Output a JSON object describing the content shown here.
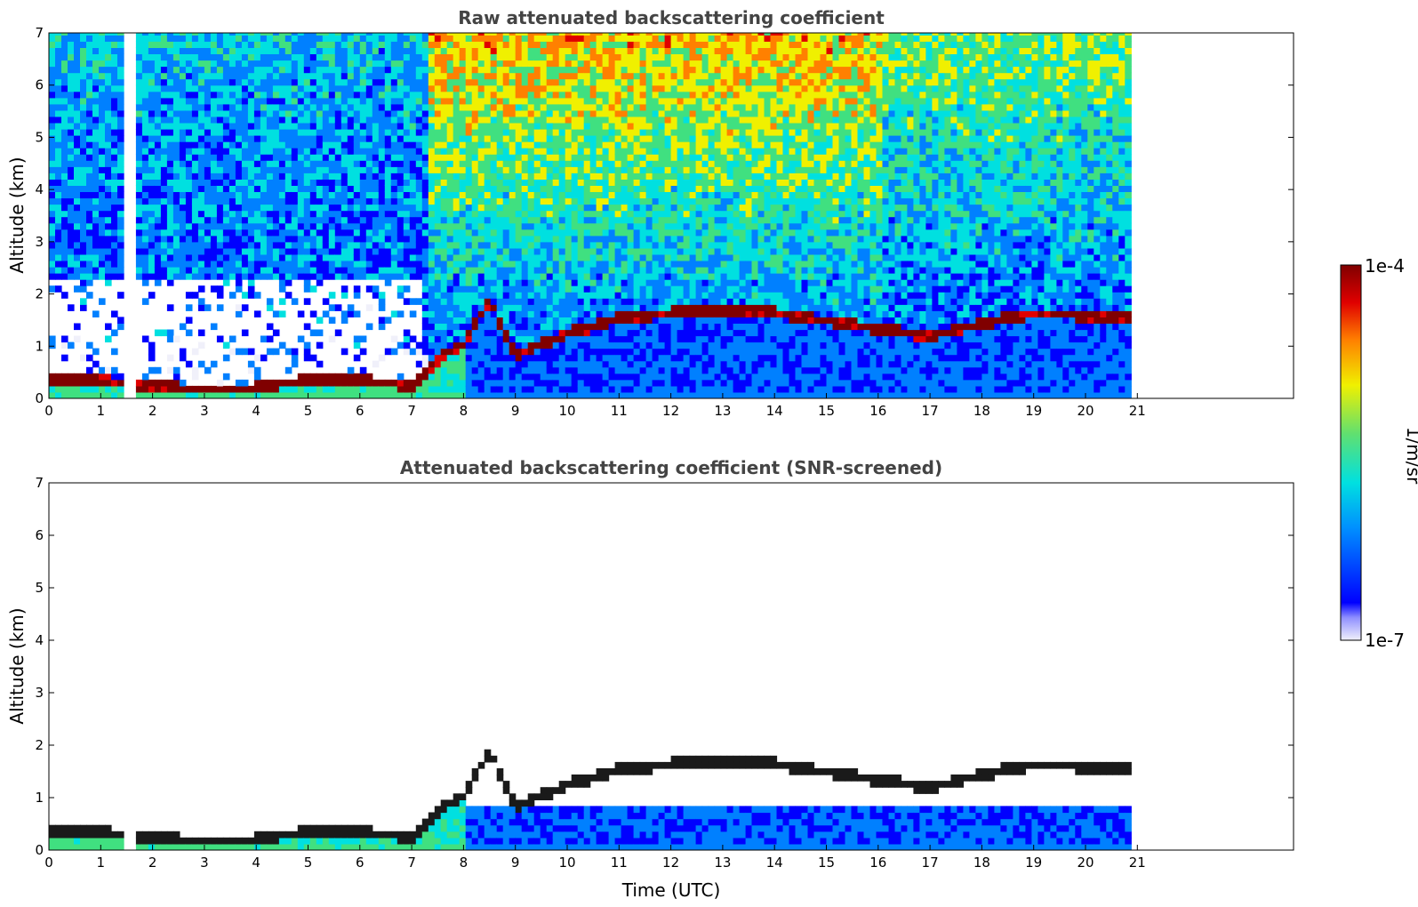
{
  "chart_data": [
    {
      "type": "heatmap",
      "title": "Raw attenuated backscattering coefficient",
      "xlabel": "",
      "ylabel": "Altitude (km)",
      "xlim": [
        0,
        24
      ],
      "ylim": [
        0,
        7
      ],
      "x_ticks": [
        "0",
        "1",
        "2",
        "3",
        "4",
        "5",
        "6",
        "7",
        "8",
        "9",
        "10",
        "11",
        "12",
        "13",
        "14",
        "15",
        "16",
        "17",
        "18",
        "19",
        "20",
        "21"
      ],
      "y_ticks": [
        "0",
        "1",
        "2",
        "3",
        "4",
        "5",
        "6",
        "7"
      ],
      "data_end_time": 20.8,
      "missing_interval": [
        1.45,
        1.58
      ],
      "boundary_layer_top_km": [
        [
          0,
          0.28
        ],
        [
          1,
          0.3
        ],
        [
          2,
          0.2
        ],
        [
          3,
          0.12
        ],
        [
          4,
          0.16
        ],
        [
          5,
          0.32
        ],
        [
          6,
          0.3
        ],
        [
          7,
          0.22
        ],
        [
          7.5,
          0.7
        ],
        [
          8,
          1.0
        ],
        [
          8.5,
          1.85
        ],
        [
          9,
          0.8
        ],
        [
          10,
          1.2
        ],
        [
          11,
          1.5
        ],
        [
          12,
          1.6
        ],
        [
          13,
          1.65
        ],
        [
          14,
          1.6
        ],
        [
          15,
          1.45
        ],
        [
          16,
          1.3
        ],
        [
          17,
          1.15
        ],
        [
          18,
          1.4
        ],
        [
          19,
          1.6
        ],
        [
          20,
          1.55
        ],
        [
          20.8,
          1.55
        ]
      ],
      "screened": false
    },
    {
      "type": "heatmap",
      "title": "Attenuated backscattering coefficient (SNR-screened)",
      "xlabel": "Time (UTC)",
      "ylabel": "Altitude (km)",
      "xlim": [
        0,
        24
      ],
      "ylim": [
        0,
        7
      ],
      "x_ticks": [
        "0",
        "1",
        "2",
        "3",
        "4",
        "5",
        "6",
        "7",
        "8",
        "9",
        "10",
        "11",
        "12",
        "13",
        "14",
        "15",
        "16",
        "17",
        "18",
        "19",
        "20",
        "21"
      ],
      "y_ticks": [
        "0",
        "1",
        "2",
        "3",
        "4",
        "5",
        "6",
        "7"
      ],
      "data_end_time": 20.8,
      "missing_interval": [
        1.45,
        1.58
      ],
      "boundary_layer_top_km": [
        [
          0,
          0.28
        ],
        [
          1,
          0.3
        ],
        [
          2,
          0.2
        ],
        [
          3,
          0.12
        ],
        [
          4,
          0.16
        ],
        [
          5,
          0.32
        ],
        [
          6,
          0.3
        ],
        [
          7,
          0.22
        ],
        [
          7.5,
          0.7
        ],
        [
          8,
          1.0
        ],
        [
          8.5,
          1.85
        ],
        [
          9,
          0.8
        ],
        [
          10,
          1.2
        ],
        [
          11,
          1.5
        ],
        [
          12,
          1.6
        ],
        [
          13,
          1.65
        ],
        [
          14,
          1.6
        ],
        [
          15,
          1.45
        ],
        [
          16,
          1.3
        ],
        [
          17,
          1.15
        ],
        [
          18,
          1.4
        ],
        [
          19,
          1.6
        ],
        [
          20,
          1.55
        ],
        [
          20.8,
          1.55
        ]
      ],
      "screened": true
    }
  ],
  "colorbar": {
    "label": "1/m/sr",
    "max_label": "1e-4",
    "min_label": "1e-7",
    "scale": "log",
    "colormap": [
      "#f0f0fa",
      "#0000ff",
      "#0080ff",
      "#00e0e0",
      "#40e080",
      "#f0f000",
      "#ff8000",
      "#e00000",
      "#800000"
    ]
  }
}
